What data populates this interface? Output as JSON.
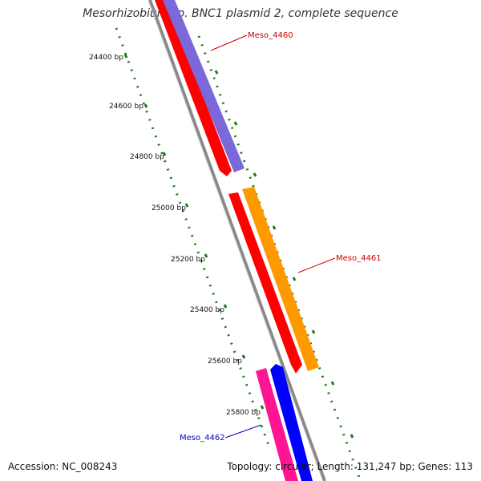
{
  "title": "Mesorhizobium sp. BNC1 plasmid 2, complete sequence",
  "accession_text": "Accession: NC_008243",
  "summary_text": "Topology: circular; Length: 131,247 bp; Genes: 113",
  "ruler_labels": [
    "24400 bp",
    "24600 bp",
    "24800 bp",
    "25000 bp",
    "25200 bp",
    "25400 bp",
    "25600 bp",
    "25800 bp"
  ],
  "genes": [
    {
      "name": "Meso_4460",
      "color": "#cc0000"
    },
    {
      "name": "Meso_4461",
      "color": "#cc0000"
    },
    {
      "name": "Meso_4462",
      "color": "#0000cc"
    }
  ],
  "colors": {
    "red_feature": "#ff0000",
    "purple_feature": "#7b68d9",
    "orange_feature": "#ff9900",
    "pink_feature": "#ff1493",
    "blue_feature": "#0000ff",
    "backbone": "#888888",
    "ruler": "#1e7a1e"
  }
}
